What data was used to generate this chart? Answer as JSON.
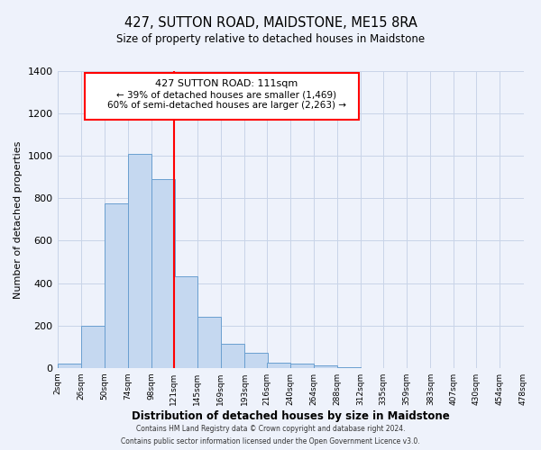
{
  "title": "427, SUTTON ROAD, MAIDSTONE, ME15 8RA",
  "subtitle": "Size of property relative to detached houses in Maidstone",
  "xlabel": "Distribution of detached houses by size in Maidstone",
  "ylabel": "Number of detached properties",
  "bar_left_edges": [
    2,
    26,
    50,
    74,
    98,
    121,
    145,
    169,
    193,
    216,
    240,
    264,
    288,
    312,
    335,
    359,
    383,
    407,
    430,
    454
  ],
  "bar_heights": [
    20,
    200,
    775,
    1010,
    890,
    430,
    240,
    115,
    70,
    25,
    20,
    10,
    5,
    0,
    0,
    0,
    0,
    0,
    0,
    0
  ],
  "bin_width": 24,
  "tick_labels": [
    "2sqm",
    "26sqm",
    "50sqm",
    "74sqm",
    "98sqm",
    "121sqm",
    "145sqm",
    "169sqm",
    "193sqm",
    "216sqm",
    "240sqm",
    "264sqm",
    "288sqm",
    "312sqm",
    "335sqm",
    "359sqm",
    "383sqm",
    "407sqm",
    "430sqm",
    "454sqm",
    "478sqm"
  ],
  "bar_color": "#c5d8f0",
  "bar_edge_color": "#6a9fd0",
  "property_line_x": 121,
  "ylim": [
    0,
    1400
  ],
  "yticks": [
    0,
    200,
    400,
    600,
    800,
    1000,
    1200,
    1400
  ],
  "annotation_title": "427 SUTTON ROAD: 111sqm",
  "annotation_line1": "← 39% of detached houses are smaller (1,469)",
  "annotation_line2": "60% of semi-detached houses are larger (2,263) →",
  "footer_line1": "Contains HM Land Registry data © Crown copyright and database right 2024.",
  "footer_line2": "Contains public sector information licensed under the Open Government Licence v3.0.",
  "bg_color": "#eef2fb",
  "grid_color": "#c8d4e8"
}
